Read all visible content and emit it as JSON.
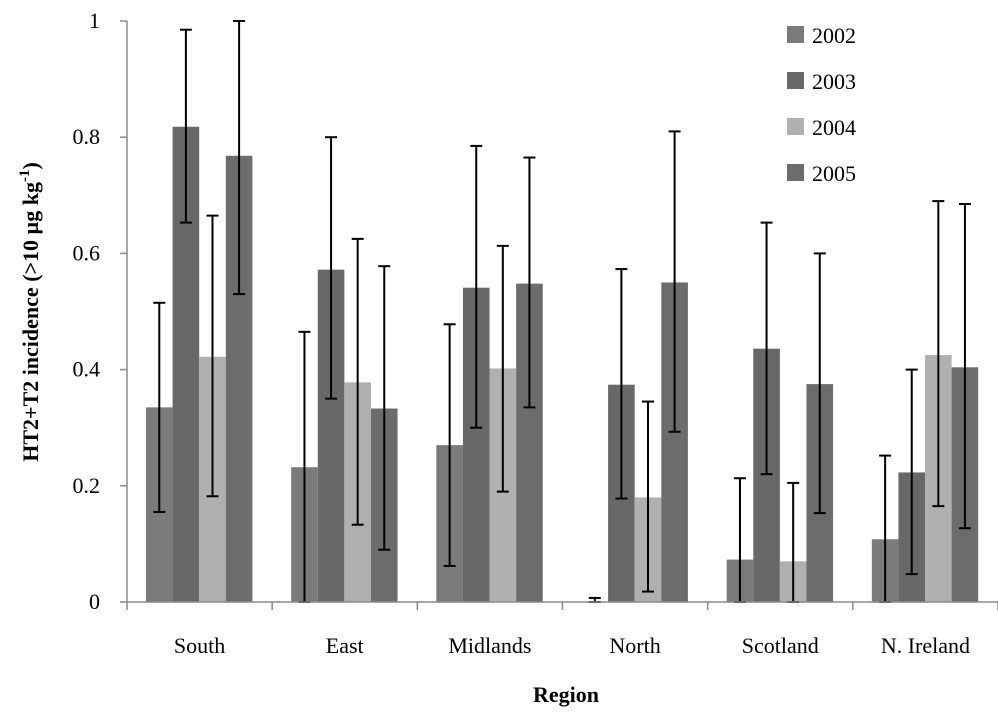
{
  "chart_data": {
    "type": "bar",
    "xlabel": "Region",
    "ylabel_main": "HT2+T2  incidence (>10 µg kg",
    "ylabel_sup": "-1",
    "ylabel_end": ")",
    "ylim": [
      0,
      1
    ],
    "yticks": [
      "0",
      "0.2",
      "0.4",
      "0.6",
      "0.8",
      "1"
    ],
    "categories": [
      "South",
      "East",
      "Midlands",
      "North",
      "Scotland",
      "N. Ireland"
    ],
    "series": [
      {
        "name": "2002",
        "color": "#7b7b7b",
        "values": [
          0.335,
          0.232,
          0.27,
          0.0,
          0.073,
          0.108
        ],
        "err_low": [
          0.155,
          0.0,
          0.062,
          0.0,
          0.0,
          0.0
        ],
        "err_high": [
          0.515,
          0.465,
          0.478,
          0.007,
          0.213,
          0.252
        ]
      },
      {
        "name": "2003",
        "color": "#686868",
        "values": [
          0.818,
          0.572,
          0.541,
          0.374,
          0.436,
          0.223
        ],
        "err_low": [
          0.653,
          0.35,
          0.3,
          0.178,
          0.22,
          0.048
        ],
        "err_high": [
          0.985,
          0.8,
          0.785,
          0.573,
          0.653,
          0.4
        ]
      },
      {
        "name": "2004",
        "color": "#b0b0b0",
        "values": [
          0.422,
          0.378,
          0.402,
          0.18,
          0.07,
          0.425
        ],
        "err_low": [
          0.182,
          0.133,
          0.19,
          0.018,
          0.0,
          0.165
        ],
        "err_high": [
          0.665,
          0.625,
          0.613,
          0.345,
          0.205,
          0.69
        ]
      },
      {
        "name": "2005",
        "color": "#6c6c6c",
        "values": [
          0.768,
          0.333,
          0.548,
          0.55,
          0.375,
          0.404
        ],
        "err_low": [
          0.53,
          0.09,
          0.335,
          0.293,
          0.153,
          0.127
        ],
        "err_high": [
          1.0,
          0.578,
          0.765,
          0.81,
          0.6,
          0.685
        ]
      }
    ],
    "legend_position": "top-right",
    "grid": false
  }
}
